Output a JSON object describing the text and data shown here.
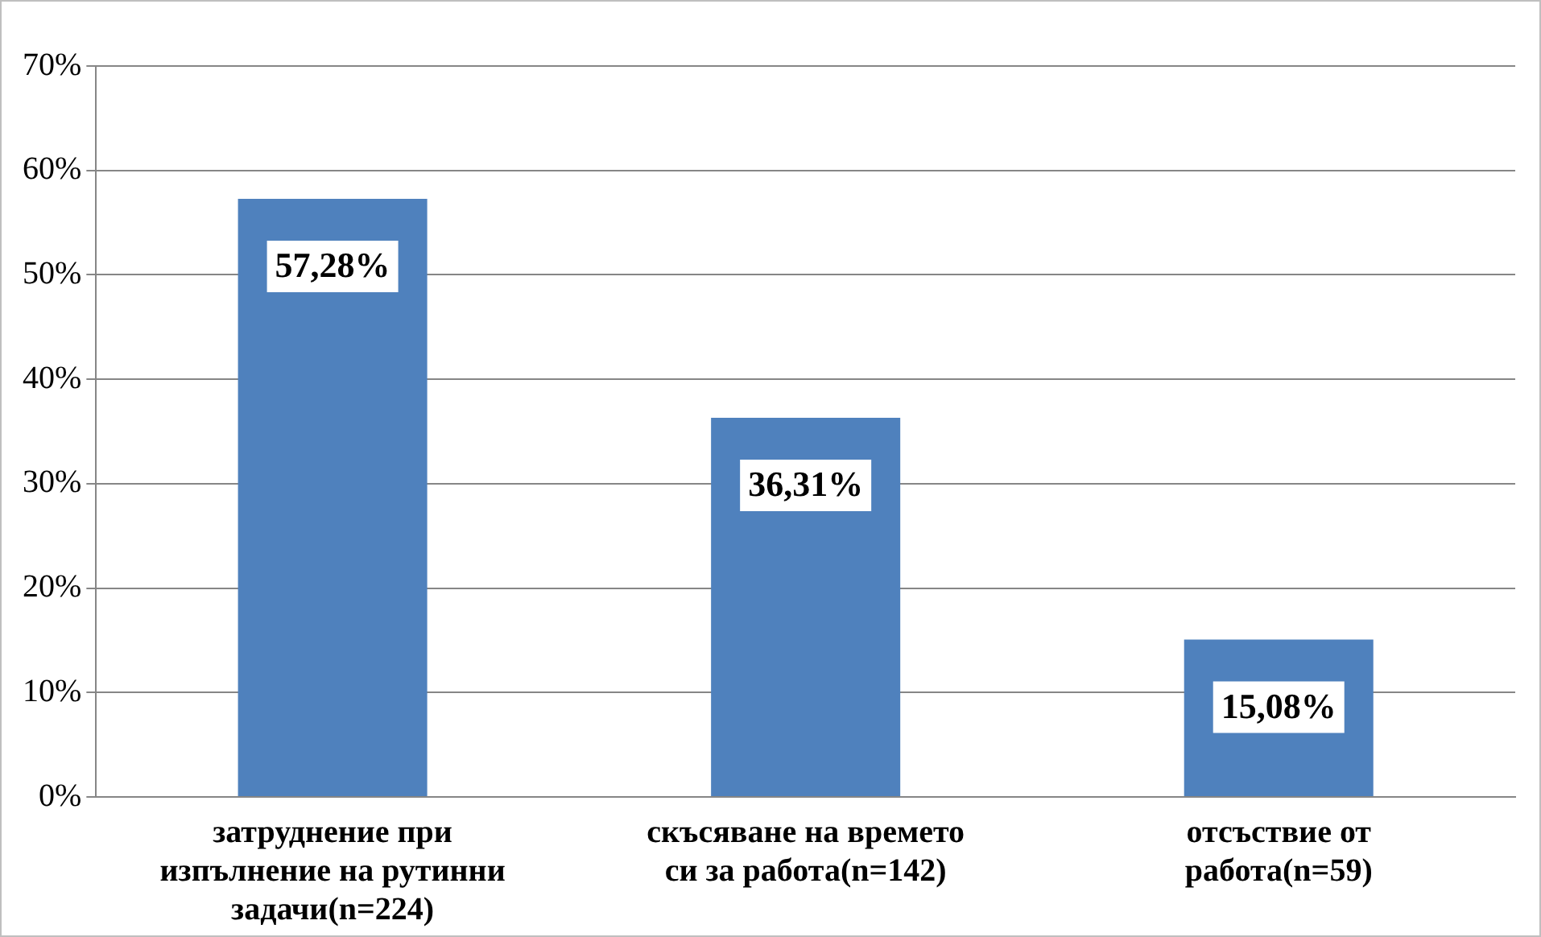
{
  "chart_data": {
    "type": "bar",
    "categories": [
      "затруднение при изпълнение на рутинни задачи(n=224)",
      "скъсяване на времето си за работа(n=142)",
      "отсъствие от работа(n=59)"
    ],
    "values": [
      57.28,
      36.31,
      15.08
    ],
    "value_labels": [
      "57,28%",
      "36,31%",
      "15,08%"
    ],
    "color": "#4f81bd",
    "ylim": [
      0,
      70
    ],
    "yticks": [
      {
        "value": 0,
        "label": "0%"
      },
      {
        "value": 10,
        "label": "10%"
      },
      {
        "value": 20,
        "label": "20%"
      },
      {
        "value": 30,
        "label": "30%"
      },
      {
        "value": 40,
        "label": "40%"
      },
      {
        "value": 50,
        "label": "50%"
      },
      {
        "value": 60,
        "label": "60%"
      },
      {
        "value": 70,
        "label": "70%"
      }
    ],
    "grid": "y",
    "legend": false
  }
}
